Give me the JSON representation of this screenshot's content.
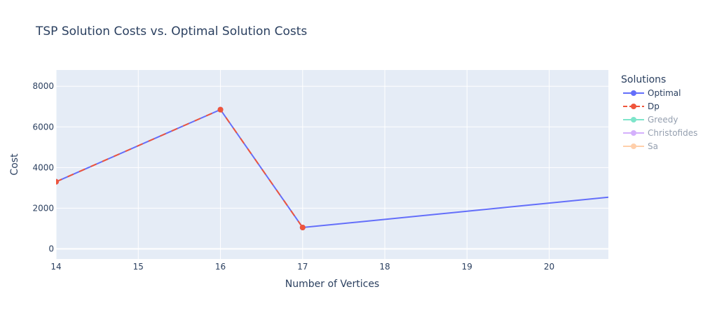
{
  "chart_data": {
    "type": "line",
    "title": "TSP Solution Costs vs. Optimal Solution Costs",
    "xlabel": "Number of Vertices",
    "ylabel": "Cost",
    "xlim": [
      14,
      20.72
    ],
    "ylim": [
      -500,
      8800
    ],
    "x_ticks": [
      14,
      15,
      16,
      17,
      18,
      19,
      20
    ],
    "y_ticks": [
      0,
      2000,
      4000,
      6000,
      8000
    ],
    "grid": true,
    "legend_title": "Solutions",
    "legend_position": "right",
    "series": [
      {
        "name": "Optimal",
        "color": "#636efa",
        "dash": "solid",
        "visible": true,
        "markers_at": [
          14,
          16,
          17
        ],
        "points": [
          [
            14,
            3300
          ],
          [
            16,
            6850
          ],
          [
            17,
            1050
          ],
          [
            21,
            2650
          ]
        ]
      },
      {
        "name": "Dp",
        "color": "#ef553b",
        "dash": "dash",
        "visible": true,
        "markers_at": [
          14,
          16,
          17
        ],
        "points": [
          [
            14,
            3300
          ],
          [
            16,
            6850
          ],
          [
            17,
            1050
          ]
        ]
      },
      {
        "name": "Greedy",
        "color": "#00cc96",
        "dash": "solid",
        "visible": false,
        "points": []
      },
      {
        "name": "Christofides",
        "color": "#ab63fa",
        "dash": "solid",
        "visible": false,
        "points": []
      },
      {
        "name": "Sa",
        "color": "#ffa15a",
        "dash": "solid",
        "visible": false,
        "points": []
      }
    ]
  }
}
